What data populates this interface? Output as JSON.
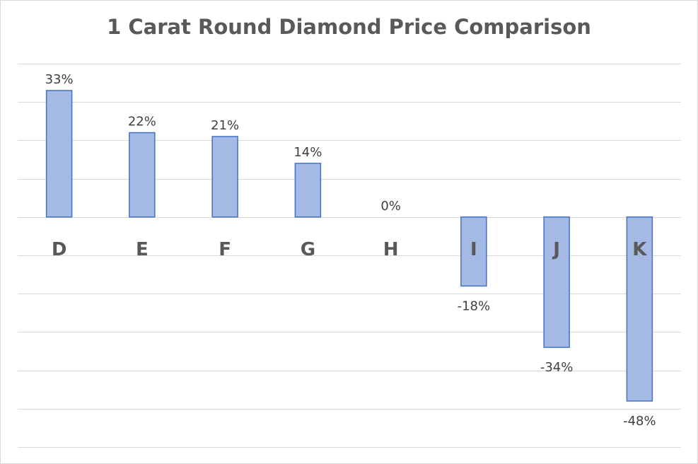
{
  "chart_data": {
    "type": "bar",
    "title": "1 Carat Round Diamond Price Comparison",
    "categories": [
      "D",
      "E",
      "F",
      "G",
      "H",
      "I",
      "J",
      "K"
    ],
    "values": [
      33,
      22,
      21,
      14,
      0,
      -18,
      -34,
      -48
    ],
    "data_labels": [
      "33%",
      "22%",
      "21%",
      "14%",
      "0%",
      "-18%",
      "-34%",
      "-48%"
    ],
    "xlabel": "",
    "ylabel": "",
    "ylim": [
      -60,
      40
    ],
    "y_gridline_step": 10,
    "grid": true,
    "legend": "none",
    "colors": {
      "bar_fill": "#a4b9e3",
      "bar_border": "#4472c4",
      "gridline": "#d9d9d9",
      "title": "#595959"
    }
  }
}
